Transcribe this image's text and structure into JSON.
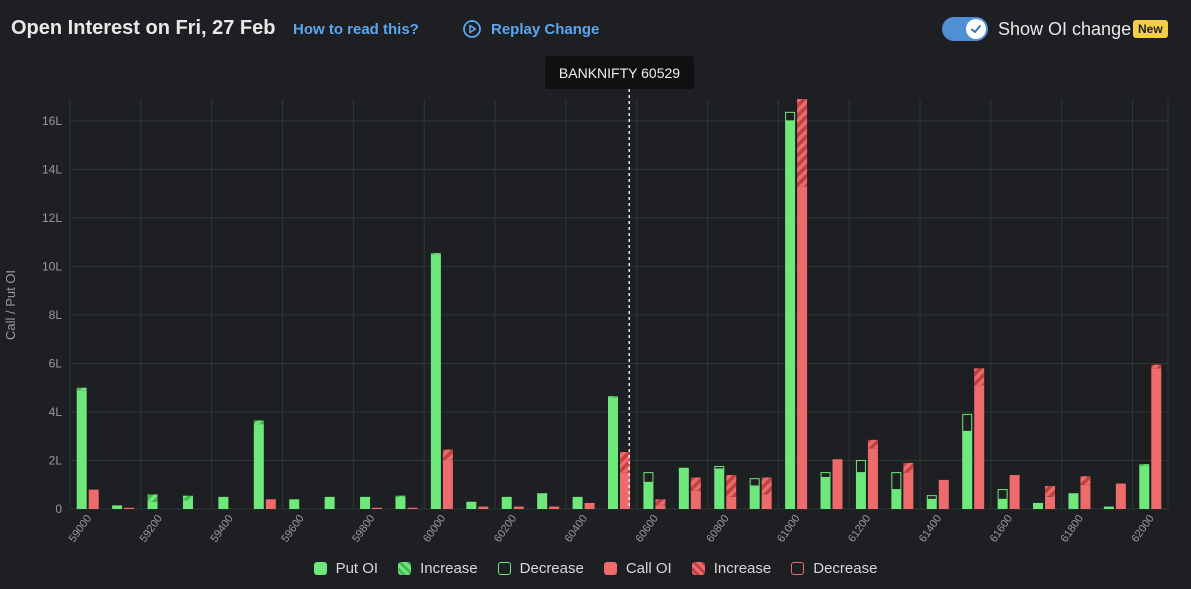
{
  "header": {
    "title": "Open Interest on Fri, 27 Feb",
    "how_link": "How to read this?",
    "replay_label": "Replay Change",
    "toggle_label": "Show OI change",
    "toggle_on": true,
    "new_badge": "New"
  },
  "spot": {
    "label": "BANKNIFTY 60529",
    "value": 60529
  },
  "legend": {
    "items": [
      {
        "label": "Put OI",
        "kind": "solid",
        "color": "#6ee87a"
      },
      {
        "label": "Increase",
        "kind": "hatch",
        "color": "#6ee87a"
      },
      {
        "label": "Decrease",
        "kind": "outline",
        "color": "#6ee87a"
      },
      {
        "label": "Call OI",
        "kind": "solid",
        "color": "#ee6b6b"
      },
      {
        "label": "Increase",
        "kind": "hatch",
        "color": "#ee6b6b"
      },
      {
        "label": "Decrease",
        "kind": "outline",
        "color": "#ee6b6b"
      }
    ]
  },
  "colors": {
    "put": "#6ee87a",
    "put_hatch": "#56c45f",
    "call": "#ee6b6b",
    "call_hatch": "#c94a4a",
    "grid": "#2c3a34",
    "axis_text": "#9a9a9a",
    "accent": "#5aa7f0"
  },
  "chart_data": {
    "type": "bar",
    "title": "Open Interest on Fri, 27 Feb",
    "xlabel": "",
    "ylabel": "Call / Put OI",
    "ylim": [
      0,
      16.9
    ],
    "yticks": [
      0,
      2,
      4,
      6,
      8,
      10,
      12,
      14,
      16
    ],
    "ytick_labels": [
      "0",
      "2L",
      "4L",
      "6L",
      "8L",
      "10L",
      "12L",
      "14L",
      "16L"
    ],
    "unit": "L",
    "x_tick_labels": [
      "59000",
      "59200",
      "59400",
      "59600",
      "59800",
      "60000",
      "60200",
      "60400",
      "60600",
      "60800",
      "61000",
      "61200",
      "61400",
      "61600",
      "61800",
      "62000"
    ],
    "strikes": [
      59000,
      59100,
      59200,
      59300,
      59400,
      59500,
      59600,
      59700,
      59800,
      59900,
      60000,
      60100,
      60200,
      60300,
      60400,
      60500,
      60600,
      60700,
      60800,
      60900,
      61000,
      61100,
      61200,
      61300,
      61400,
      61500,
      61600,
      61700,
      61800,
      61900,
      62000
    ],
    "series": [
      {
        "name": "Put OI",
        "values": [
          4.9,
          0.15,
          0.3,
          0.35,
          0.5,
          3.5,
          0.4,
          0.5,
          0.5,
          0.5,
          10.5,
          0.3,
          0.5,
          0.65,
          0.5,
          4.6,
          1.1,
          1.7,
          1.65,
          0.95,
          16.0,
          1.3,
          1.5,
          0.8,
          0.4,
          3.2,
          0.4,
          0.25,
          0.65,
          0.1,
          1.8
        ]
      },
      {
        "name": "Put OI Increase",
        "values": [
          0.1,
          0,
          0.3,
          0.2,
          0,
          0.15,
          0,
          0,
          0,
          0.05,
          0.05,
          0,
          0,
          0,
          0,
          0.05,
          0,
          0,
          0,
          0,
          0,
          0,
          0,
          0,
          0,
          0,
          0,
          0,
          0,
          0,
          0.05
        ]
      },
      {
        "name": "Put OI Decrease",
        "values": [
          0,
          0,
          0,
          0,
          0,
          0,
          0,
          0,
          0,
          0,
          0,
          0,
          0,
          0,
          0,
          0,
          0.4,
          0,
          0.1,
          0.3,
          0.35,
          0.2,
          0.5,
          0.7,
          0.15,
          0.7,
          0.4,
          0,
          0,
          0,
          0
        ]
      },
      {
        "name": "Call OI",
        "values": [
          0.8,
          0.05,
          0,
          0,
          0,
          0.4,
          0,
          0,
          0.05,
          0.05,
          2.0,
          0.1,
          0.1,
          0.1,
          0.25,
          1.5,
          0.15,
          0.75,
          0.5,
          0.6,
          13.3,
          2.05,
          2.5,
          1.5,
          1.2,
          5.1,
          1.4,
          0.5,
          1.0,
          1.05,
          5.8
        ]
      },
      {
        "name": "Call OI Increase",
        "values": [
          0,
          0,
          0,
          0,
          0,
          0,
          0,
          0,
          0,
          0,
          0.45,
          0,
          0,
          0,
          0,
          0.85,
          0.25,
          0.55,
          0.9,
          0.7,
          3.6,
          0,
          0.35,
          0.4,
          0,
          0.7,
          0,
          0.45,
          0.35,
          0,
          0.15
        ]
      },
      {
        "name": "Call OI Decrease",
        "values": [
          0,
          0,
          0,
          0,
          0,
          0,
          0,
          0,
          0,
          0,
          0,
          0,
          0,
          0,
          0,
          0,
          0,
          0,
          0,
          0,
          0,
          0,
          0,
          0,
          0,
          0,
          0,
          0,
          0,
          0,
          0
        ]
      }
    ]
  }
}
